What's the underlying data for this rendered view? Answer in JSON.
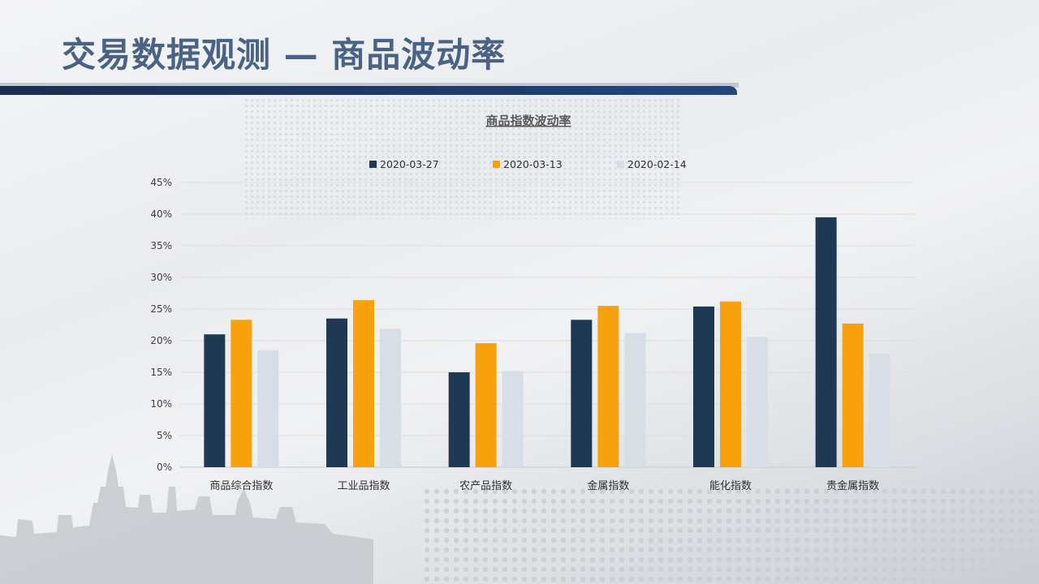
{
  "slide": {
    "title": "交易数据观测 — 商品波动率"
  },
  "colors": {
    "series1": "#1f3955",
    "series2": "#f7a20d",
    "series3": "#d8dee6",
    "accent": "#1f3d6e"
  },
  "chart_data": {
    "type": "bar",
    "title": "商品指数波动率",
    "xlabel": "",
    "ylabel": "",
    "categories": [
      "商品综合指数",
      "工业品指数",
      "农产品指数",
      "金属指数",
      "能化指数",
      "贵金属指数"
    ],
    "series": [
      {
        "name": "2020-03-27",
        "values": [
          21.0,
          23.5,
          15.0,
          23.3,
          25.4,
          39.5
        ]
      },
      {
        "name": "2020-03-13",
        "values": [
          23.3,
          26.4,
          19.6,
          25.5,
          26.2,
          22.7
        ]
      },
      {
        "name": "2020-02-14",
        "values": [
          18.5,
          21.9,
          15.2,
          21.2,
          20.6,
          18.0
        ]
      }
    ],
    "ylim": [
      0,
      45
    ],
    "yticks": [
      "0%",
      "5%",
      "10%",
      "15%",
      "20%",
      "25%",
      "30%",
      "35%",
      "40%",
      "45%"
    ],
    "grid": true,
    "legend": "top-center"
  }
}
